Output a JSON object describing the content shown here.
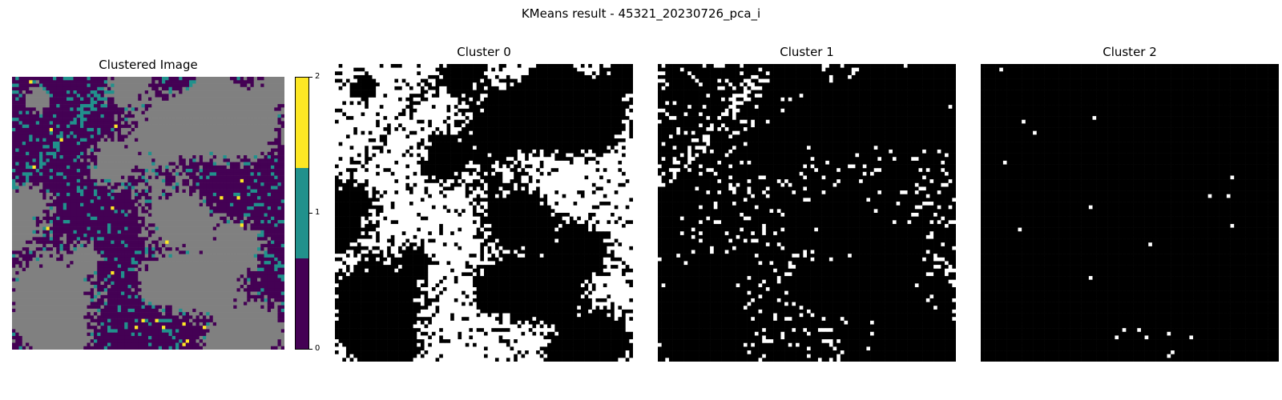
{
  "figure": {
    "suptitle": "KMeans result - 45321_20230726_pca_i"
  },
  "chart_data": [
    {
      "type": "heatmap",
      "title": "Clustered Image",
      "legend_colors": {
        "0": "#440154",
        "1": "#21918c",
        "2": "#fde725",
        "nodata": "#808080"
      },
      "colorbar": {
        "ticks": [
          "0",
          "1",
          "2"
        ],
        "colors": [
          "#440154",
          "#21918c",
          "#fde725"
        ],
        "range": [
          0,
          2
        ]
      },
      "axes": "off",
      "class_fractions": {
        "0": 0.58,
        "1": 0.12,
        "2": 0.01,
        "nodata": 0.29
      }
    },
    {
      "type": "heatmap",
      "title": "Cluster 0",
      "colors": {
        "member": "#ffffff",
        "other": "#000000"
      },
      "axes": "off",
      "member_fraction": 0.6
    },
    {
      "type": "heatmap",
      "title": "Cluster 1",
      "colors": {
        "member": "#ffffff",
        "other": "#000000"
      },
      "axes": "off",
      "member_fraction": 0.15
    },
    {
      "type": "heatmap",
      "title": "Cluster 2",
      "colors": {
        "member": "#ffffff",
        "other": "#000000"
      },
      "axes": "off",
      "member_fraction": 0.01
    }
  ]
}
